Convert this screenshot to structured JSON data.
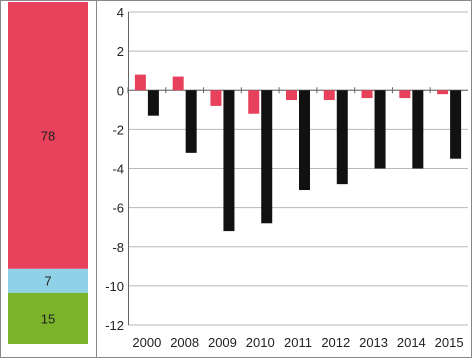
{
  "chart_data": [
    {
      "type": "bar",
      "stacked": true,
      "orientation": "vertical",
      "series": [
        {
          "name": "",
          "value": 15,
          "color": "#7bb42a"
        },
        {
          "name": "",
          "value": 7,
          "color": "#8fd1e6"
        },
        {
          "name": "",
          "value": 78,
          "color": "#e8415b"
        }
      ],
      "labels": [
        "15",
        "7",
        "78"
      ],
      "total": 100
    },
    {
      "type": "bar",
      "categories": [
        "2000",
        "2008",
        "2009",
        "2010",
        "2011",
        "2012",
        "2013",
        "2014",
        "2015"
      ],
      "series": [
        {
          "name": "",
          "color": "#e8415b",
          "values": [
            0.8,
            0.7,
            -0.8,
            -1.2,
            -0.5,
            -0.5,
            -0.4,
            -0.4,
            -0.2
          ]
        },
        {
          "name": "",
          "color": "#111111",
          "values": [
            -1.3,
            -3.2,
            -7.2,
            -6.8,
            -5.1,
            -4.8,
            -4.0,
            -4.0,
            -3.5
          ]
        }
      ],
      "ylim": [
        -12,
        4
      ],
      "yticks": [
        4,
        2,
        0,
        -2,
        -4,
        -6,
        -8,
        -10,
        -12
      ],
      "grid": true,
      "xlabel": "",
      "ylabel": ""
    }
  ]
}
